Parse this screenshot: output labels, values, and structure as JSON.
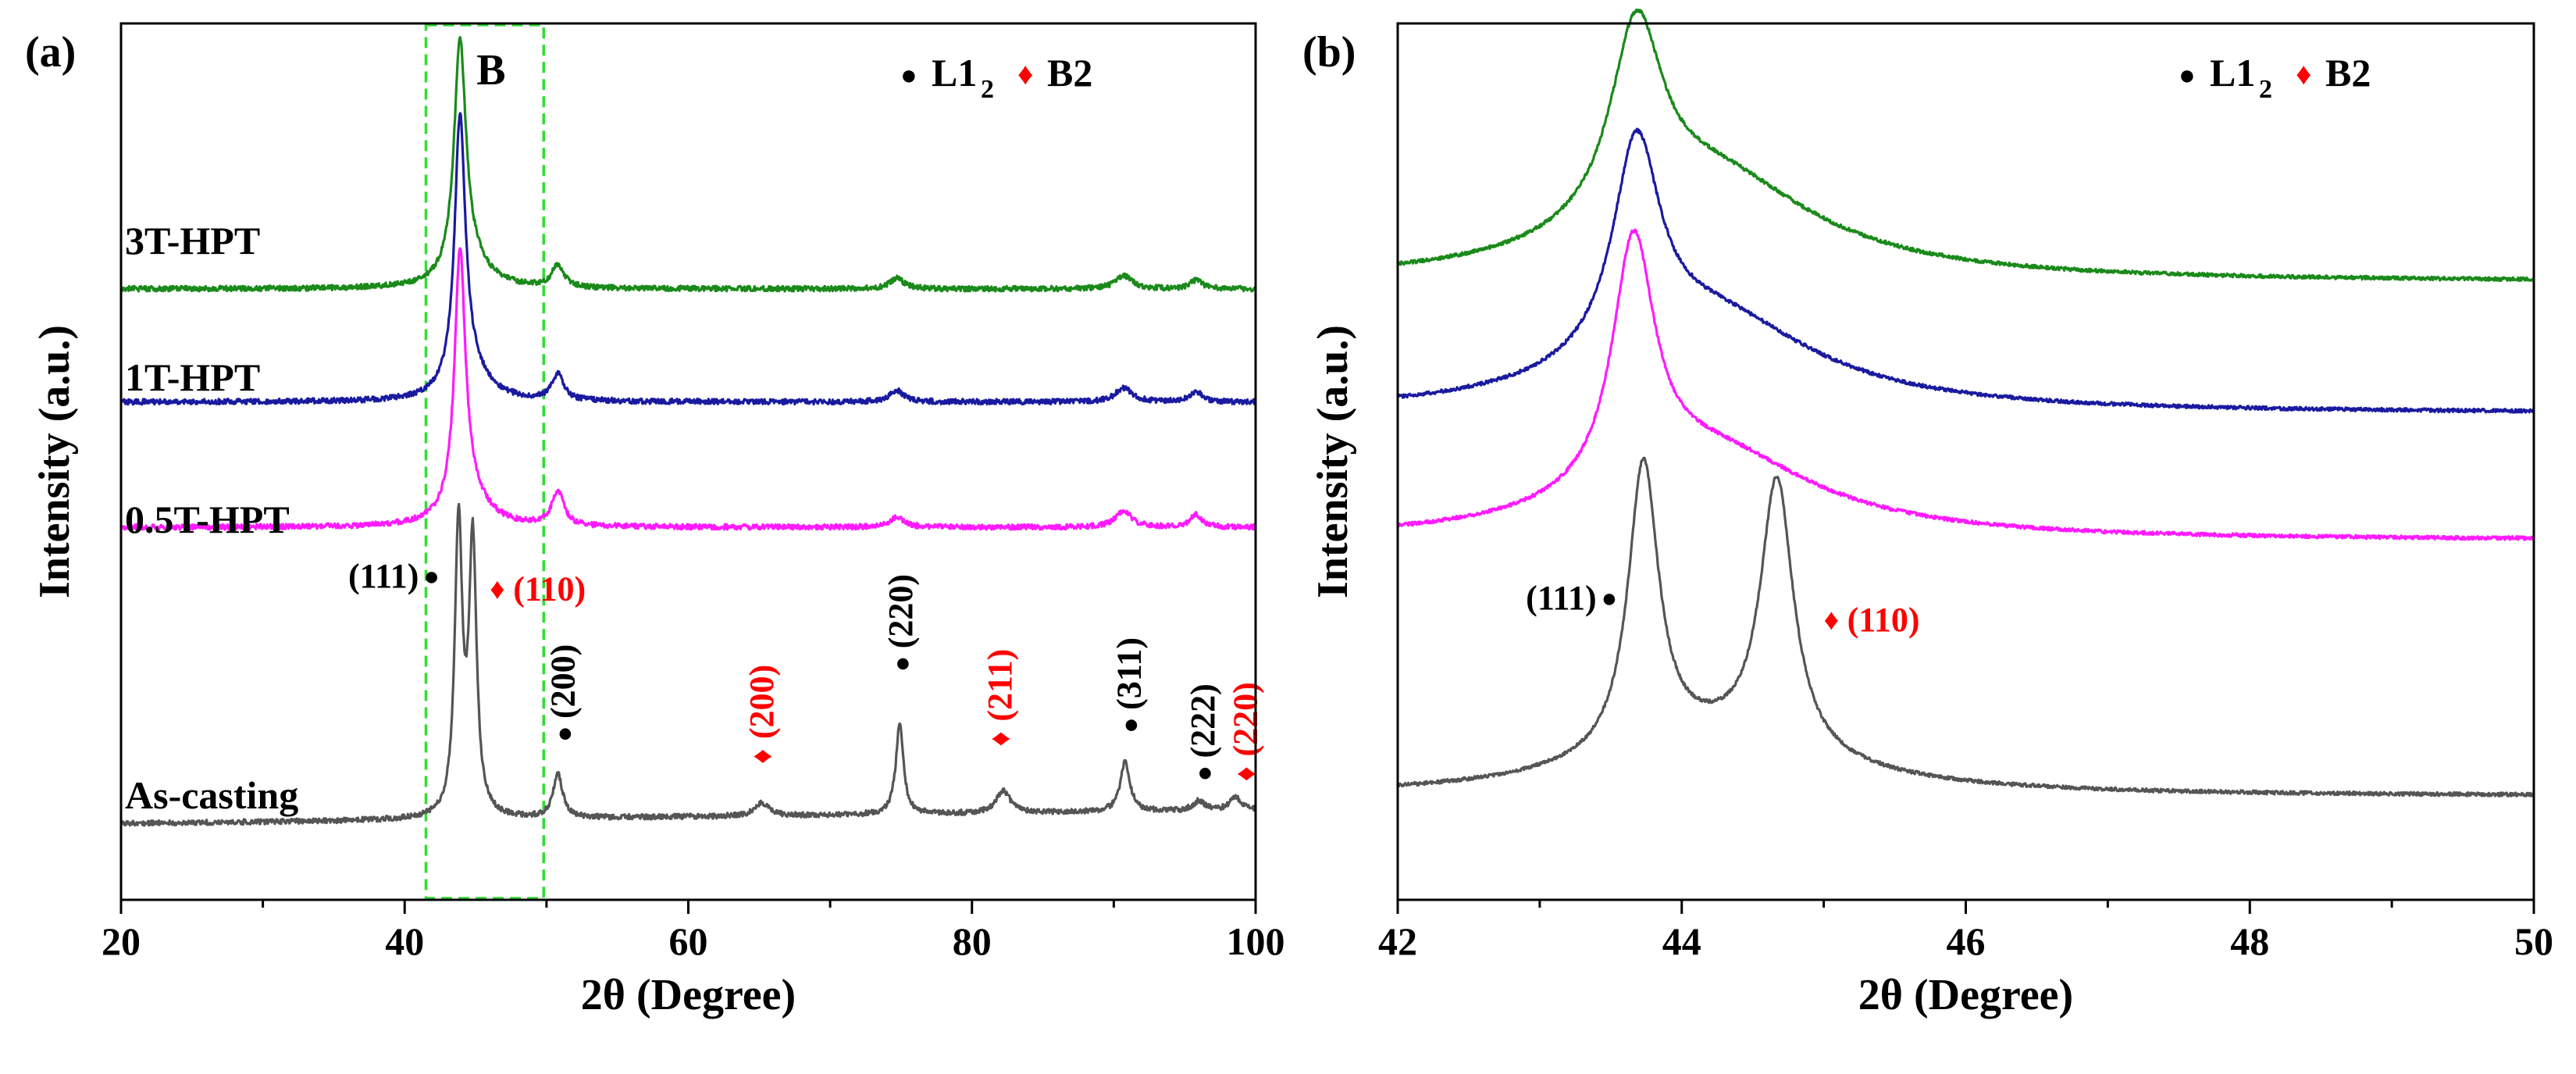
{
  "chart_data": [
    {
      "panel_label": "(a)",
      "type": "line",
      "xlabel": "2θ (Degree)",
      "ylabel": "Intensity (a.u.)",
      "xlim": [
        20,
        100
      ],
      "ylim": [
        0,
        1
      ],
      "xticks": [
        "20",
        "40",
        "60",
        "80",
        "100"
      ],
      "yticks": [],
      "box_label": "B",
      "box_range": [
        41.5,
        49.8
      ],
      "legend": [
        {
          "marker": "●",
          "name": "L1",
          "sub": "2",
          "color": "#000000"
        },
        {
          "marker": "♦",
          "name": "B2",
          "sub": "",
          "color": "#ff0000"
        }
      ],
      "series": [
        {
          "name": "3T-HPT",
          "color": "#1a8a1a",
          "baseline": 0.697,
          "background": "flat",
          "peaks": [
            {
              "x": 43.9,
              "height": 0.26,
              "width": 0.5
            },
            {
              "x": 44.5,
              "height": 0.03,
              "width": 1.5
            },
            {
              "x": 50.8,
              "height": 0.026,
              "width": 0.5
            },
            {
              "x": 74.7,
              "height": 0.012,
              "width": 0.6
            },
            {
              "x": 90.7,
              "height": 0.015,
              "width": 0.7
            },
            {
              "x": 95.8,
              "height": 0.01,
              "width": 0.5
            }
          ]
        },
        {
          "name": "1T-HPT",
          "color": "#1a1aa0",
          "baseline": 0.568,
          "background": "flat",
          "peaks": [
            {
              "x": 43.9,
              "height": 0.3,
              "width": 0.45
            },
            {
              "x": 44.5,
              "height": 0.035,
              "width": 1.5
            },
            {
              "x": 50.8,
              "height": 0.03,
              "width": 0.5
            },
            {
              "x": 74.7,
              "height": 0.013,
              "width": 0.6
            },
            {
              "x": 90.7,
              "height": 0.016,
              "width": 0.7
            },
            {
              "x": 95.8,
              "height": 0.012,
              "width": 0.5
            }
          ]
        },
        {
          "name": "0.5T-HPT",
          "color": "#ff1aff",
          "baseline": 0.425,
          "background": "flat",
          "peaks": [
            {
              "x": 43.9,
              "height": 0.29,
              "width": 0.45
            },
            {
              "x": 44.5,
              "height": 0.035,
              "width": 1.5
            },
            {
              "x": 50.8,
              "height": 0.04,
              "width": 0.5
            },
            {
              "x": 74.7,
              "height": 0.012,
              "width": 0.6
            },
            {
              "x": 90.7,
              "height": 0.018,
              "width": 0.7
            },
            {
              "x": 95.8,
              "height": 0.014,
              "width": 0.5
            }
          ]
        },
        {
          "name": "As-casting",
          "color": "#555555",
          "baseline": 0.087,
          "background": "rising",
          "peaks": [
            {
              "x": 43.8,
              "height": 0.33,
              "width": 0.32
            },
            {
              "x": 44.8,
              "height": 0.31,
              "width": 0.32
            },
            {
              "x": 50.8,
              "height": 0.05,
              "width": 0.4
            },
            {
              "x": 65.2,
              "height": 0.015,
              "width": 0.6
            },
            {
              "x": 74.9,
              "height": 0.103,
              "width": 0.32
            },
            {
              "x": 82.2,
              "height": 0.026,
              "width": 0.6
            },
            {
              "x": 90.8,
              "height": 0.058,
              "width": 0.4
            },
            {
              "x": 96.0,
              "height": 0.011,
              "width": 0.5
            },
            {
              "x": 98.6,
              "height": 0.015,
              "width": 0.5
            }
          ]
        }
      ],
      "curve_labels": [
        "3T-HPT",
        "1T-HPT",
        "0.5T-HPT",
        "As-casting"
      ],
      "annotations": [
        {
          "text": "(111)",
          "color": "#000000",
          "marker": "●",
          "x": 41.0,
          "y": 0.37,
          "rotate": false
        },
        {
          "text": "(110)",
          "color": "#ff0000",
          "marker": "♦",
          "x": 46.0,
          "y": 0.355,
          "rotate": false
        },
        {
          "text": "(200)",
          "color": "#000000",
          "marker": "●",
          "x": 51.2,
          "y": 0.18,
          "rotate": true
        },
        {
          "text": "(200)",
          "color": "#ff0000",
          "marker": "♦",
          "x": 65.2,
          "y": 0.155,
          "rotate": true
        },
        {
          "text": "(220)",
          "color": "#000000",
          "marker": "●",
          "x": 75.0,
          "y": 0.26,
          "rotate": true
        },
        {
          "text": "(211)",
          "color": "#ff0000",
          "marker": "♦",
          "x": 82.0,
          "y": 0.175,
          "rotate": true
        },
        {
          "text": "(311)",
          "color": "#000000",
          "marker": "●",
          "x": 91.1,
          "y": 0.19,
          "rotate": true
        },
        {
          "text": "(222)",
          "color": "#000000",
          "marker": "●",
          "x": 96.3,
          "y": 0.135,
          "rotate": true
        },
        {
          "text": "(220)",
          "color": "#ff0000",
          "marker": "♦",
          "x": 99.3,
          "y": 0.135,
          "rotate": true
        }
      ]
    },
    {
      "panel_label": "(b)",
      "type": "line",
      "xlabel": "2θ (Degree)",
      "ylabel": "Intensity (a.u.)",
      "xlim": [
        42,
        50
      ],
      "ylim": [
        0,
        1
      ],
      "xticks": [
        "42",
        "44",
        "46",
        "48",
        "50"
      ],
      "yticks": [],
      "legend": [
        {
          "marker": "●",
          "name": "L1",
          "sub": "2",
          "color": "#000000"
        },
        {
          "marker": "♦",
          "name": "B2",
          "sub": "",
          "color": "#ff0000"
        }
      ],
      "series": [
        {
          "name": "3T-HPT",
          "color": "#1a8a1a",
          "baseline": 0.705,
          "peaks": [
            {
              "x": 43.68,
              "height": 0.22,
              "width": 0.22
            },
            {
              "x": 44.2,
              "height": 0.12,
              "width": 0.9
            }
          ]
        },
        {
          "name": "1T-HPT",
          "color": "#1a1aa0",
          "baseline": 0.555,
          "peaks": [
            {
              "x": 43.68,
              "height": 0.24,
              "width": 0.2
            },
            {
              "x": 44.2,
              "height": 0.11,
              "width": 0.9
            }
          ]
        },
        {
          "name": "0.5T-HPT",
          "color": "#ff1aff",
          "baseline": 0.41,
          "peaks": [
            {
              "x": 43.66,
              "height": 0.28,
              "width": 0.18
            },
            {
              "x": 44.2,
              "height": 0.1,
              "width": 0.9
            }
          ]
        },
        {
          "name": "As-casting",
          "color": "#555555",
          "baseline": 0.118,
          "peaks": [
            {
              "x": 43.73,
              "height": 0.33,
              "width": 0.13
            },
            {
              "x": 44.67,
              "height": 0.31,
              "width": 0.14
            },
            {
              "x": 44.2,
              "height": 0.06,
              "width": 1.0
            }
          ]
        }
      ],
      "annotations": [
        {
          "text": "(111)",
          "color": "#000000",
          "marker": "●",
          "x": 43.4,
          "y": 0.345,
          "rotate": false
        },
        {
          "text": "(110)",
          "color": "#ff0000",
          "marker": "♦",
          "x": 45.0,
          "y": 0.32,
          "rotate": false
        }
      ]
    }
  ]
}
